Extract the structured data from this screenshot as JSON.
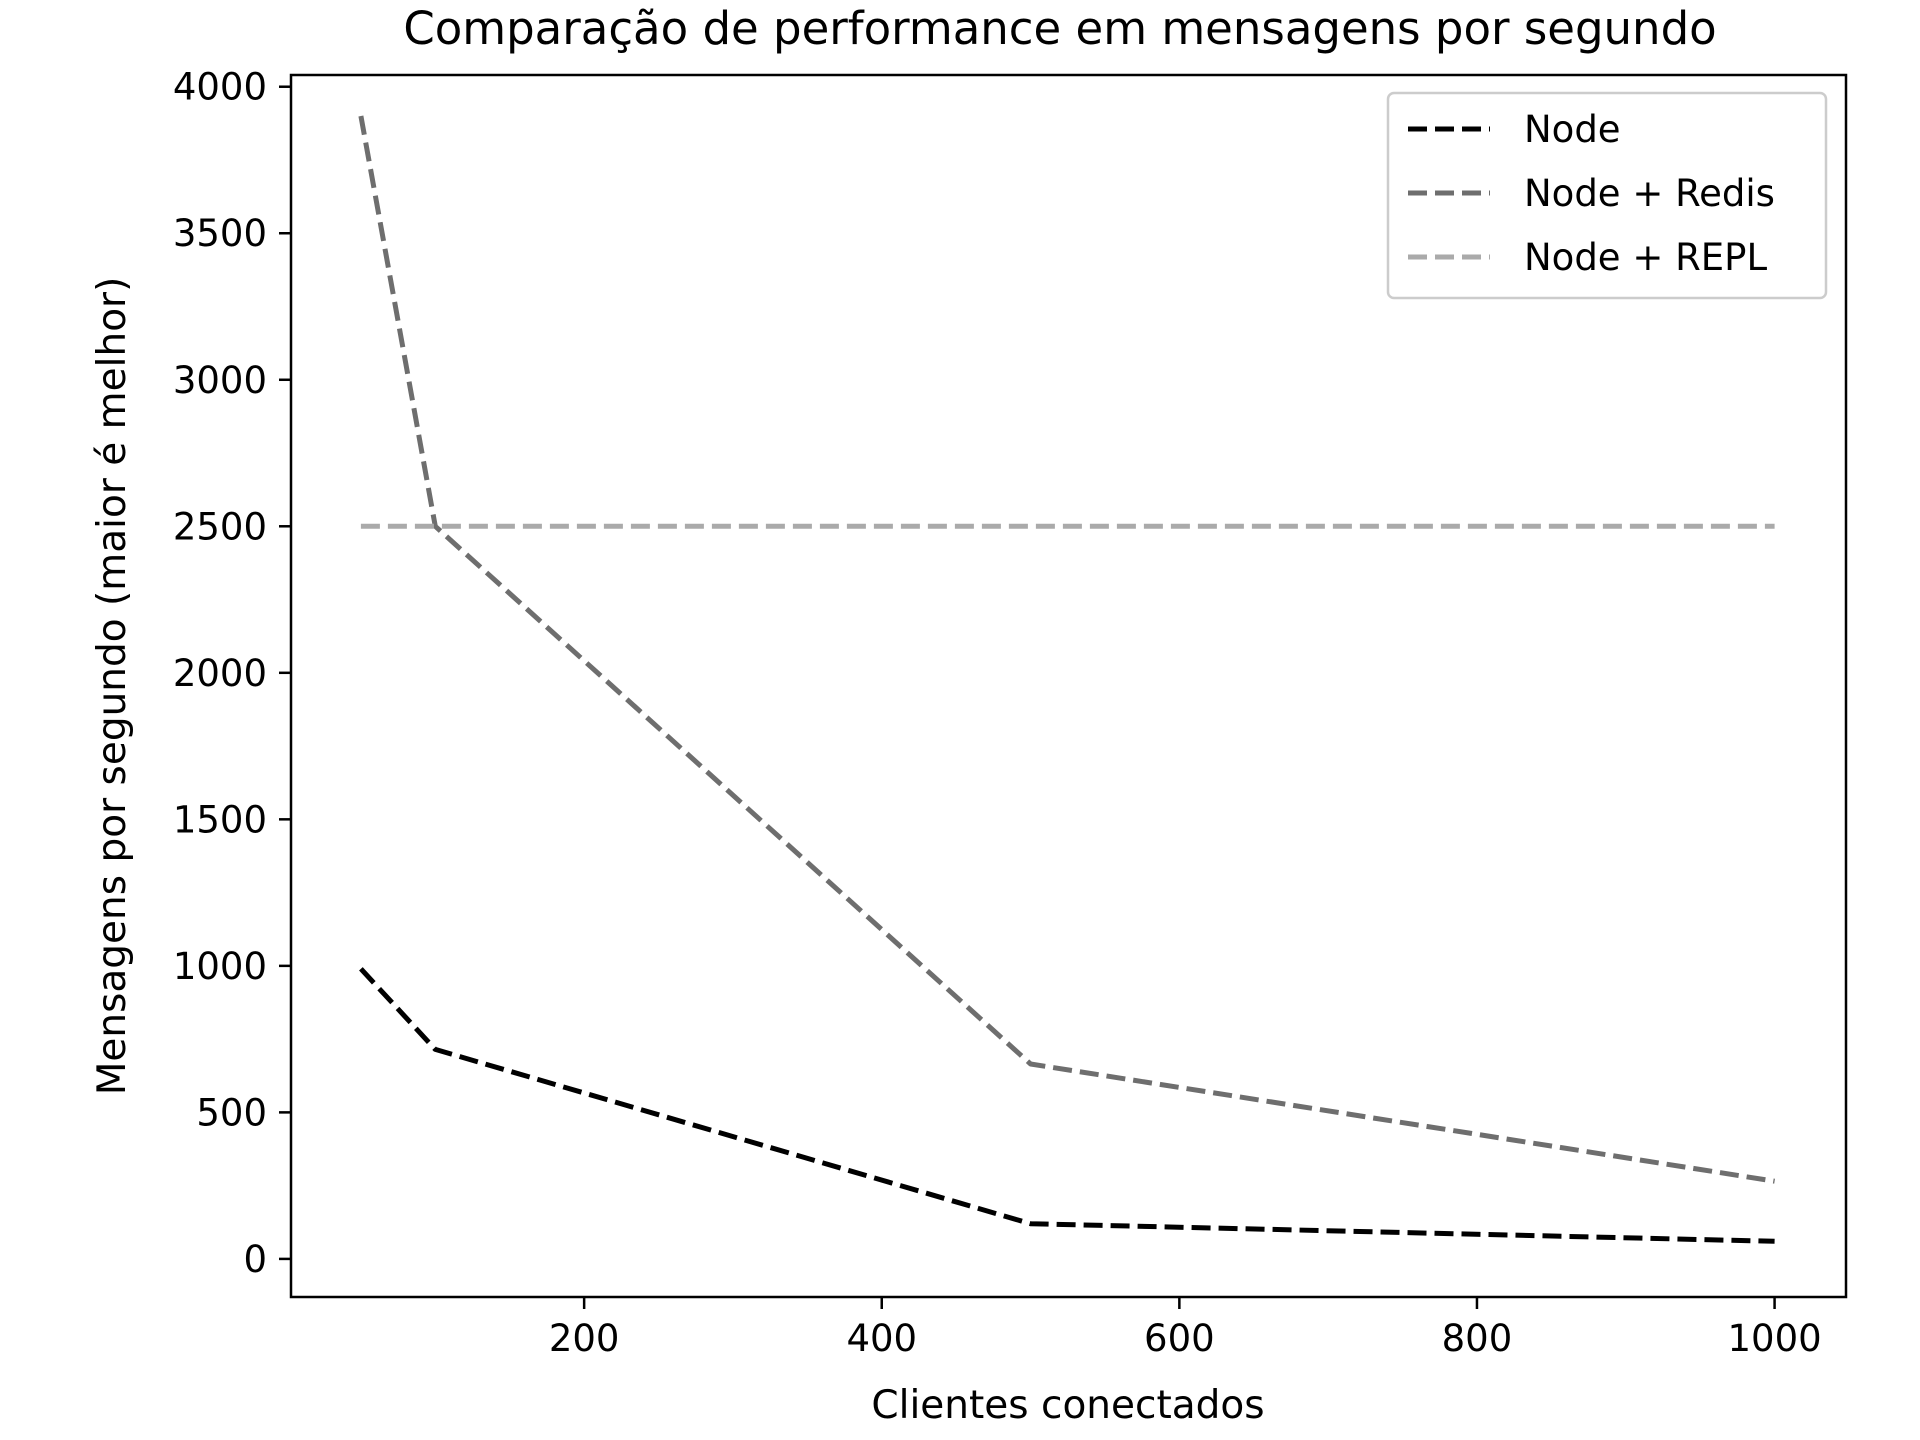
{
  "chart_data": {
    "type": "line",
    "title": "Comparação de performance em mensagens por segundo",
    "xlabel": "Clientes conectados",
    "ylabel": "Mensagens por segundo (maior é melhor)",
    "xlim": [
      3,
      1048
    ],
    "ylim": [
      -130,
      4040
    ],
    "x_ticks": [
      200,
      400,
      600,
      800,
      1000
    ],
    "y_ticks": [
      0,
      500,
      1000,
      1500,
      2000,
      2500,
      3000,
      3500,
      4000
    ],
    "grid": false,
    "legend_position": "top-right",
    "series": [
      {
        "name": "Node",
        "color": "#000000",
        "x": [
          50,
          100,
          500,
          1000
        ],
        "y": [
          990,
          715,
          120,
          60
        ]
      },
      {
        "name": "Node + Redis",
        "color": "#6e6e6e",
        "x": [
          50,
          100,
          500,
          1000
        ],
        "y": [
          3900,
          2500,
          665,
          265
        ]
      },
      {
        "name": "Node + REPL",
        "color": "#aaaaaa",
        "x": [
          50,
          100,
          500,
          1000
        ],
        "y": [
          2500,
          2500,
          2500,
          2500
        ]
      }
    ]
  }
}
